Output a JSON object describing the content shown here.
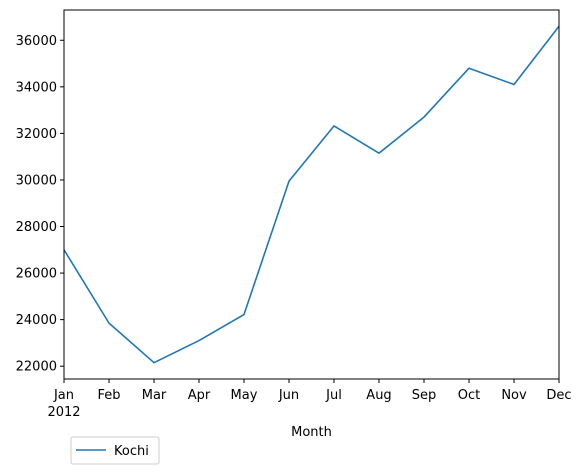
{
  "chart_data": {
    "type": "line",
    "title": "",
    "xlabel": "Month",
    "ylabel": "",
    "categories": [
      "Jan",
      "Feb",
      "Mar",
      "Apr",
      "May",
      "Jun",
      "Jul",
      "Aug",
      "Sep",
      "Oct",
      "Nov",
      "Dec"
    ],
    "year_label": "2012",
    "yticks": [
      22000,
      24000,
      26000,
      28000,
      30000,
      32000,
      34000,
      36000
    ],
    "ylim": [
      21450,
      37300
    ],
    "series": [
      {
        "name": "Kochi",
        "color": "#1f77b4",
        "values": [
          27000,
          23850,
          22150,
          23100,
          24220,
          29950,
          32320,
          31150,
          32700,
          34800,
          34100,
          36600
        ]
      }
    ],
    "grid": false,
    "legend": "bottom-left, below axes"
  }
}
